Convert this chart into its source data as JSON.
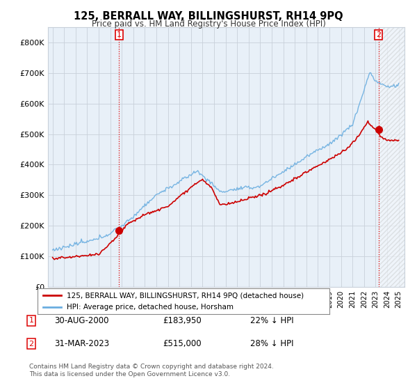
{
  "title": "125, BERRALL WAY, BILLINGSHURST, RH14 9PQ",
  "subtitle": "Price paid vs. HM Land Registry's House Price Index (HPI)",
  "legend_line1": "125, BERRALL WAY, BILLINGSHURST, RH14 9PQ (detached house)",
  "legend_line2": "HPI: Average price, detached house, Horsham",
  "footer1": "Contains HM Land Registry data © Crown copyright and database right 2024.",
  "footer2": "This data is licensed under the Open Government Licence v3.0.",
  "table_rows": [
    {
      "num": "1",
      "date": "30-AUG-2000",
      "price": "£183,950",
      "pct": "22% ↓ HPI"
    },
    {
      "num": "2",
      "date": "31-MAR-2023",
      "price": "£515,000",
      "pct": "28% ↓ HPI"
    }
  ],
  "marker1_year": 2000.75,
  "marker1_price": 183950,
  "marker2_year": 2023.25,
  "marker2_price": 515000,
  "xlim_left": 1994.6,
  "xlim_right": 2025.5,
  "ylim": [
    0,
    850000
  ],
  "yticks": [
    0,
    100000,
    200000,
    300000,
    400000,
    500000,
    600000,
    700000,
    800000
  ],
  "ytick_labels": [
    "£0",
    "£100K",
    "£200K",
    "£300K",
    "£400K",
    "£500K",
    "£600K",
    "£700K",
    "£800K"
  ],
  "hpi_color": "#6aaee0",
  "hpi_fill_color": "#ddeeff",
  "price_color": "#cc0000",
  "vline_color": "#dd0000",
  "background_color": "#ffffff",
  "plot_bg_color": "#e8f0f8",
  "grid_color": "#c8d0da"
}
